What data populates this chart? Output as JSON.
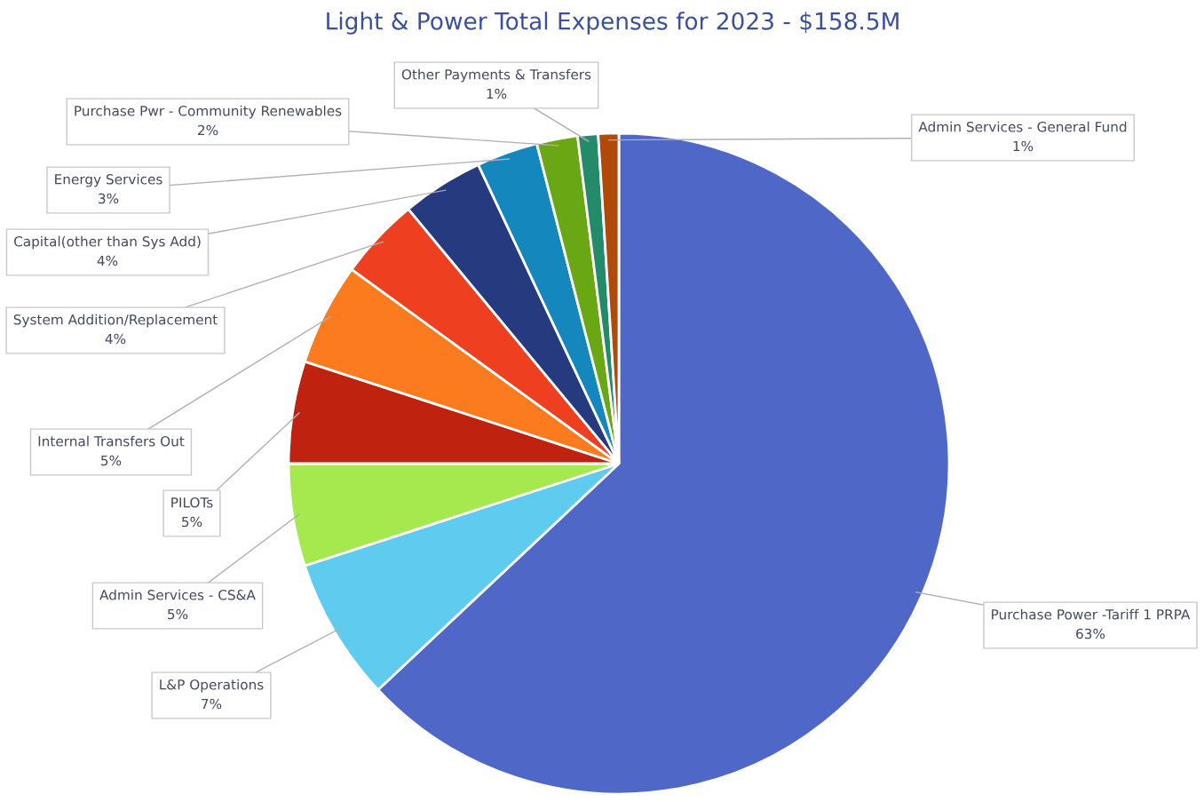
{
  "chart_data": {
    "type": "pie",
    "title": "Light & Power Total Expenses for 2023 - $158.5M",
    "categories": [
      "Purchase Power -Tariff 1 PRPA",
      "L&P Operations",
      "Admin Services - CS&A",
      "PILOTs",
      "Internal Transfers Out",
      "System Addition/Replacement",
      "Capital(other than Sys Add)",
      "Energy Services",
      "Purchase Pwr - Community Renewables",
      "Other Payments & Transfers",
      "Admin Services - General Fund"
    ],
    "values": [
      63,
      7,
      5,
      5,
      5,
      4,
      4,
      3,
      2,
      1,
      1
    ],
    "value_labels": [
      "63%",
      "7%",
      "5%",
      "5%",
      "5%",
      "4%",
      "4%",
      "3%",
      "2%",
      "1%",
      "1%"
    ],
    "colors": [
      "#4f67c7",
      "#5ecbef",
      "#a6e94f",
      "#bf2310",
      "#fb7b1e",
      "#ee4020",
      "#263a7f",
      "#1488bd",
      "#6aa714",
      "#238a6a",
      "#b04a08"
    ],
    "legend": false
  }
}
